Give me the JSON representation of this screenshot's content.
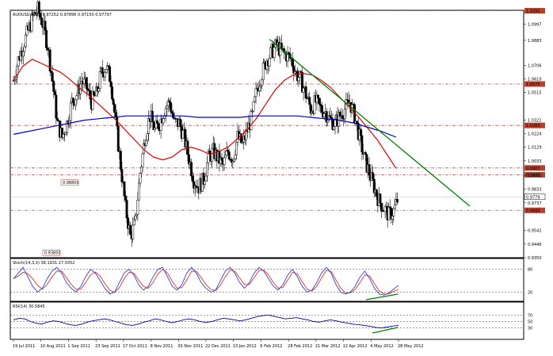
{
  "chart_data": {
    "type": "candlestick",
    "title": "AUDUSD,Daily 0.97252 0.97896 0.97150 0.97797",
    "symbol_line": "AUDUSD,Daily",
    "quote": "0.97252 0.97896 0.97150 0.97797",
    "last_price": "0.9779",
    "x_tick_labels": [
      "19 Jul 2011",
      "10 Aug 2011",
      "1 Sep 2011",
      "23 Sep 2011",
      "17 Oct 2011",
      "8 Nov 2011",
      "30 Nov 2011",
      "22 Dec 2011",
      "13 Jan 2012",
      "6 Feb 2012",
      "28 Feb 2012",
      "21 Mar 2012",
      "12 Apr 2012",
      "4 May 2012",
      "28 May 2012"
    ],
    "y_tick_labels": [
      "1.0997",
      "1.0883",
      "1.0706",
      "1.0610",
      "1.0515",
      "1.0321",
      "1.0224",
      "1.0129",
      "1.0033",
      "0.9932",
      "0.9833",
      "0.9737",
      "0.9542",
      "0.9446",
      "0.9350"
    ],
    "y_range": [
      0.935,
      1.1095
    ],
    "horizontal_levels": [
      {
        "label": "1.1092",
        "value": 1.1092,
        "color": "#c0504d"
      },
      {
        "label": "1.0575",
        "value": 1.0575,
        "color": "#c0504d"
      },
      {
        "label": "1.0283",
        "value": 1.0283,
        "color": "#c0504d"
      },
      {
        "label": "0.9983",
        "value": 0.9983,
        "color": "#c0504d"
      },
      {
        "label": "0.9935",
        "value": 0.9935,
        "color": "#c0504d"
      },
      {
        "label": "0.9684",
        "value": 0.9684,
        "color": "#c0504d"
      }
    ],
    "annotations": [
      {
        "label": "0.98800",
        "value": 0.988,
        "bar": 39
      },
      {
        "label": "0.93850",
        "value": 0.9385,
        "bar": 24
      }
    ],
    "closes": [
      1.06,
      1.075,
      1.085,
      1.095,
      1.105,
      1.11,
      1.1,
      1.085,
      1.06,
      1.03,
      1.02,
      1.03,
      1.045,
      1.05,
      1.06,
      1.055,
      1.045,
      1.05,
      1.065,
      1.07,
      1.06,
      1.03,
      1.0,
      0.97,
      0.95,
      0.96,
      0.995,
      1.02,
      1.035,
      1.025,
      1.03,
      1.04,
      1.045,
      1.03,
      1.03,
      1.02,
      1.005,
      0.99,
      0.985,
      0.99,
      1.005,
      1.01,
      1.005,
      1.0,
      1.01,
      1.005,
      1.02,
      1.015,
      1.025,
      1.035,
      1.055,
      1.065,
      1.075,
      1.08,
      1.085,
      1.08,
      1.078,
      1.075,
      1.065,
      1.06,
      1.05,
      1.04,
      1.045,
      1.04,
      1.038,
      1.032,
      1.03,
      1.035,
      1.04,
      1.045,
      1.035,
      1.02,
      1.005,
      0.995,
      0.985,
      0.975,
      0.97,
      0.965,
      0.968,
      0.978
    ],
    "sma_fast": [
      1.06,
      1.07,
      1.075,
      1.072,
      1.069,
      1.066,
      1.061,
      1.055,
      1.05,
      1.044,
      1.038,
      1.032,
      1.025,
      1.018,
      1.011,
      1.006,
      1.004,
      1.006,
      1.011,
      1.013,
      1.011,
      1.008,
      1.01,
      1.013,
      1.019,
      1.025,
      1.033,
      1.043,
      1.053,
      1.06,
      1.064,
      1.065,
      1.064,
      1.06,
      1.055,
      1.048,
      1.041,
      1.034,
      1.026,
      1.018,
      1.008,
      0.998
    ],
    "sma_slow": [
      1.022,
      1.024,
      1.026,
      1.028,
      1.03,
      1.032,
      1.033,
      1.034,
      1.035,
      1.035,
      1.035,
      1.035,
      1.035,
      1.034,
      1.034,
      1.034,
      1.034,
      1.035,
      1.035,
      1.035,
      1.035,
      1.034,
      1.033,
      1.032,
      1.03,
      1.027,
      1.024,
      1.02
    ],
    "trendline": {
      "x0": 0.505,
      "y0": 1.089,
      "x1": 0.895,
      "y1": 0.9714,
      "color": "#008000"
    },
    "indicators": [
      {
        "name": "Stoch(14,3,3)",
        "values": "38.1931 27.0352",
        "levels": [
          "80",
          "20"
        ],
        "range": [
          0,
          100
        ],
        "main": [
          55,
          70,
          85,
          60,
          35,
          20,
          30,
          55,
          75,
          85,
          70,
          45,
          30,
          20,
          35,
          60,
          80,
          70,
          50,
          30,
          15,
          20,
          45,
          70,
          80,
          65,
          40,
          25,
          35,
          60,
          80,
          85,
          60,
          35,
          25,
          40,
          70,
          85,
          70,
          45,
          30,
          20,
          25,
          50,
          75,
          85,
          70,
          45,
          30,
          45,
          70,
          85,
          75,
          55,
          35,
          25,
          40,
          65,
          80,
          60,
          35,
          20,
          25,
          45,
          70,
          85,
          70,
          40,
          20,
          15,
          20,
          35,
          60,
          75,
          55,
          30,
          15,
          12,
          18,
          28,
          38
        ],
        "signal": [
          55,
          62,
          72,
          68,
          55,
          38,
          28,
          40,
          60,
          75,
          75,
          58,
          40,
          27,
          28,
          45,
          65,
          73,
          62,
          42,
          25,
          19,
          32,
          55,
          72,
          70,
          52,
          35,
          30,
          45,
          68,
          80,
          70,
          48,
          30,
          32,
          52,
          75,
          75,
          58,
          40,
          27,
          24,
          38,
          60,
          78,
          75,
          57,
          40,
          40,
          58,
          77,
          78,
          65,
          45,
          30,
          33,
          52,
          72,
          68,
          47,
          28,
          23,
          35,
          57,
          77,
          75,
          52,
          30,
          18,
          18,
          27,
          45,
          65,
          62,
          42,
          23,
          15,
          15,
          22,
          27
        ]
      },
      {
        "name": "RSI(14)",
        "values": "30.5845",
        "levels": [
          "70",
          "50",
          "30"
        ],
        "range": [
          0,
          100
        ],
        "main": [
          55,
          60,
          58,
          50,
          45,
          42,
          48,
          52,
          50,
          45,
          40,
          38,
          42,
          48,
          52,
          55,
          58,
          55,
          50,
          45,
          40,
          38,
          42,
          48,
          52,
          58,
          55,
          50,
          46,
          50,
          55,
          58,
          55,
          50,
          47,
          50,
          55,
          60,
          58,
          55,
          52,
          55,
          60,
          65,
          68,
          70,
          66,
          62,
          58,
          60,
          62,
          58,
          55,
          50,
          48,
          52,
          55,
          52,
          48,
          45,
          42,
          40,
          38,
          35,
          32,
          30,
          33,
          36,
          38
        ]
      }
    ]
  }
}
